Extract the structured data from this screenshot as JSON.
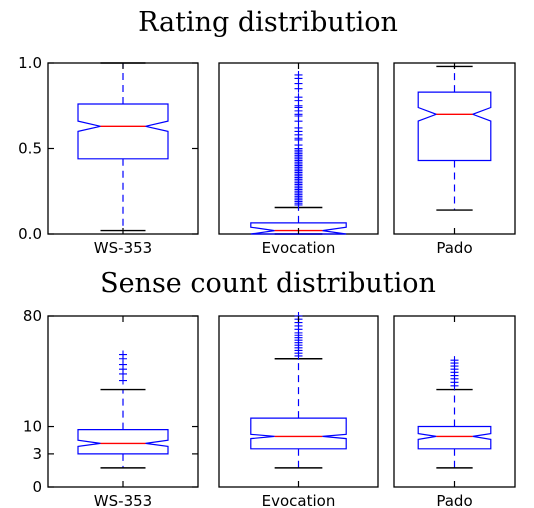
{
  "chart_data": [
    {
      "type": "boxplot",
      "title": "Rating distribution",
      "ylim": [
        0,
        1
      ],
      "yticks": [
        {
          "value": 0.0,
          "label": "0.0"
        },
        {
          "value": 0.5,
          "label": "0.5"
        },
        {
          "value": 1.0,
          "label": "1.0"
        }
      ],
      "notched": true,
      "series": [
        {
          "name": "WS-353",
          "whisker_low": 0.02,
          "q1": 0.44,
          "median": 0.63,
          "q3": 0.76,
          "whisker_high": 1.0,
          "notch_low": 0.6,
          "notch_high": 0.66,
          "fliers": []
        },
        {
          "name": "Evocation",
          "whisker_low": 0.0,
          "q1": 0.0,
          "median": 0.02,
          "q3": 0.065,
          "whisker_high": 0.155,
          "notch_low": 0.0,
          "notch_high": 0.04,
          "fliers": [
            0.17,
            0.18,
            0.19,
            0.2,
            0.21,
            0.22,
            0.23,
            0.24,
            0.25,
            0.26,
            0.27,
            0.28,
            0.29,
            0.3,
            0.31,
            0.32,
            0.33,
            0.34,
            0.35,
            0.36,
            0.37,
            0.38,
            0.39,
            0.4,
            0.41,
            0.42,
            0.43,
            0.44,
            0.45,
            0.46,
            0.47,
            0.48,
            0.49,
            0.5,
            0.52,
            0.55,
            0.56,
            0.58,
            0.6,
            0.62,
            0.66,
            0.69,
            0.7,
            0.72,
            0.74,
            0.75,
            0.78,
            0.8,
            0.85,
            0.88,
            0.91,
            0.93
          ]
        },
        {
          "name": "Pado",
          "whisker_low": 0.14,
          "q1": 0.43,
          "median": 0.7,
          "q3": 0.83,
          "whisker_high": 0.98,
          "notch_low": 0.66,
          "notch_high": 0.74,
          "fliers": []
        }
      ]
    },
    {
      "type": "boxplot",
      "title": "Sense count distribution",
      "yscale": "sqrt",
      "ylim": [
        0,
        80
      ],
      "yticks": [
        {
          "value": 0,
          "label": "0"
        },
        {
          "value": 3,
          "label": "3"
        },
        {
          "value": 10,
          "label": "10"
        },
        {
          "value": 80,
          "label": "80"
        }
      ],
      "notched": true,
      "series": [
        {
          "name": "WS-353",
          "whisker_low": 1,
          "q1": 3,
          "median": 5.2,
          "q3": 9.0,
          "whisker_high": 26,
          "notch_low": 4.5,
          "notch_high": 6.0,
          "fliers": [
            31,
            35,
            38,
            41,
            45,
            48
          ]
        },
        {
          "name": "Evocation",
          "whisker_low": 1,
          "q1": 4,
          "median": 7.0,
          "q3": 13,
          "whisker_high": 45,
          "notch_low": 6.4,
          "notch_high": 7.6,
          "fliers": [
            47,
            49,
            51,
            53,
            55,
            57,
            59,
            61,
            63,
            65,
            68,
            71,
            74,
            77,
            80
          ]
        },
        {
          "name": "Pado",
          "whisker_low": 1,
          "q1": 4,
          "median": 7.0,
          "q3": 10,
          "whisker_high": 26,
          "notch_low": 6.2,
          "notch_high": 7.8,
          "fliers": [
            28,
            30,
            32,
            34,
            36,
            38,
            40,
            42,
            44
          ]
        }
      ]
    }
  ]
}
